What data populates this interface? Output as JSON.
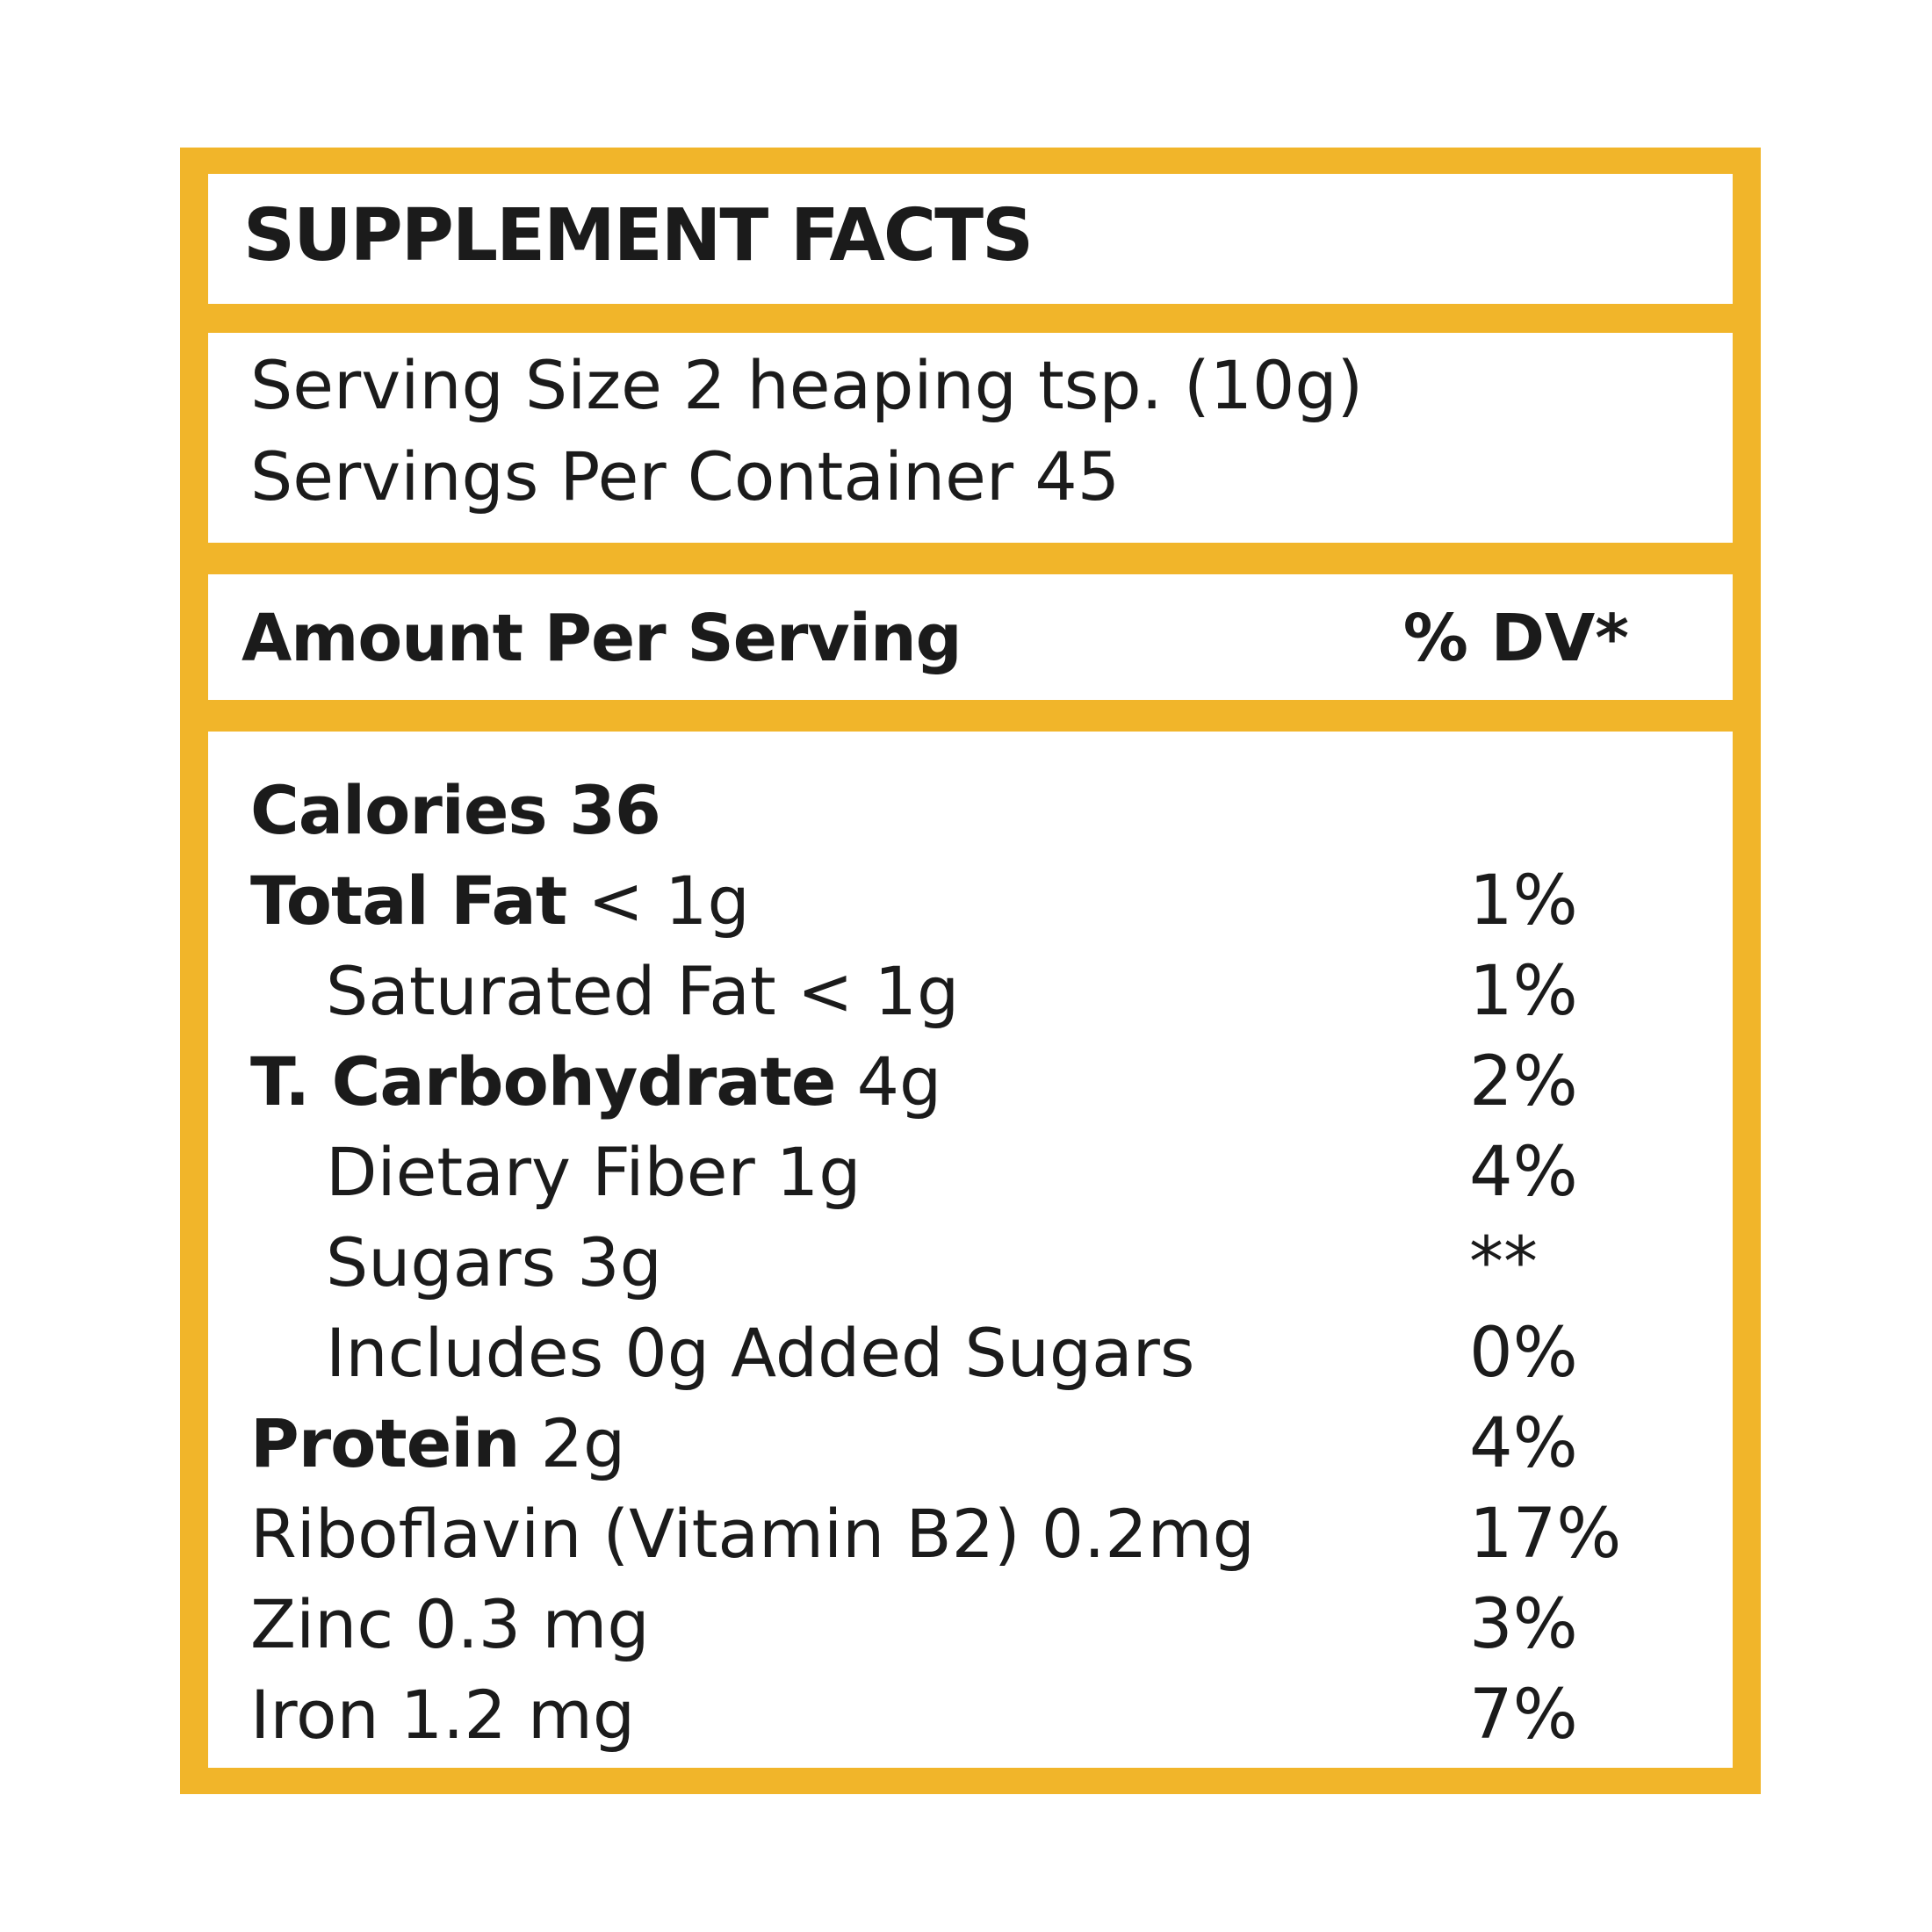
{
  "title": "SUPPLEMENT FACTS",
  "serving": {
    "size": "Serving Size 2 heaping tsp. (10g)",
    "per_container": "Servings Per Container 45"
  },
  "header": {
    "amount": "Amount Per Serving",
    "dv": "% DV*"
  },
  "rows": [
    {
      "name": "Calories",
      "amount": " 36",
      "dv": ""
    },
    {
      "name": "Total Fat",
      "amount": " <  1g",
      "dv": "1%"
    },
    {
      "name": "",
      "amount": "Saturated Fat <  1g",
      "dv": "1%"
    },
    {
      "name": "T. Carbohydrate",
      "amount": " 4g",
      "dv": "2%"
    },
    {
      "name": "",
      "amount": "Dietary Fiber 1g",
      "dv": "4%"
    },
    {
      "name": "",
      "amount": "Sugars 3g",
      "dv": "**"
    },
    {
      "name": "",
      "amount": "Includes 0g Added Sugars",
      "dv": "0%"
    },
    {
      "name": "Protein",
      "amount": " 2g",
      "dv": "4%"
    },
    {
      "name": "",
      "amount": "Riboflavin (Vitamin B2) 0.2mg",
      "dv": "17%"
    },
    {
      "name": "",
      "amount": "Zinc 0.3 mg",
      "dv": "3%"
    },
    {
      "name": "",
      "amount": "Iron 1.2 mg",
      "dv": "7%"
    }
  ],
  "colors": {
    "frame": "#f1b52a",
    "text": "#1b1b1b",
    "panel": "#ffffff"
  }
}
